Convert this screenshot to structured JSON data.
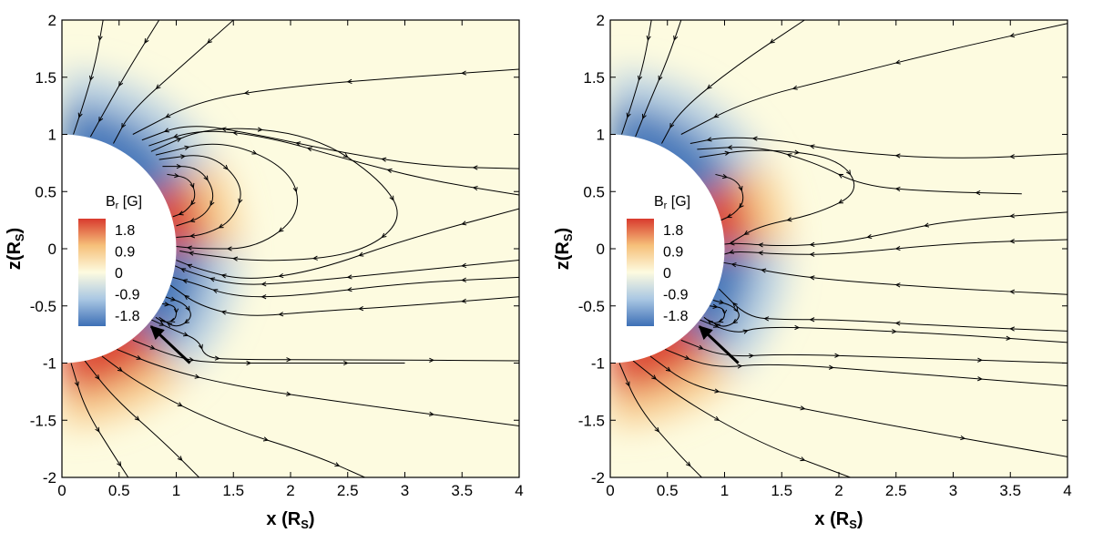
{
  "chart_data": [
    {
      "type": "contour-streamline",
      "panel": "left",
      "xlabel": "x (R",
      "xlabel_sub": "S",
      "xlabel_end": ")",
      "ylabel": "z(R",
      "ylabel_sub": "S",
      "ylabel_end": ")",
      "xlim": [
        0,
        4
      ],
      "ylim": [
        -2,
        2
      ],
      "xticks": [
        "0",
        "0.5",
        "1",
        "1.5",
        "2",
        "2.5",
        "3",
        "3.5",
        "4"
      ],
      "yticks": [
        "2",
        "1.5",
        "1",
        "0.5",
        "0",
        "-0.5",
        "-1",
        "-1.5",
        "-2"
      ],
      "legend_title": "B",
      "legend_title_sub": "r",
      "legend_title_end": " [G]",
      "legend_values": [
        "1.8",
        "0.9",
        "0",
        "-0.9",
        "-1.8"
      ],
      "colormap": [
        "#3d6fb6",
        "#a9c7e3",
        "#fdfbe0",
        "#f6c07a",
        "#d83a2e"
      ],
      "sun_radius": 1,
      "arrow": {
        "from": [
          1.12,
          -1.0
        ],
        "to": [
          0.78,
          -0.68
        ]
      },
      "field_polarity": [
        {
          "lat_range_deg": [
            30,
            90
          ],
          "sign": "negative"
        },
        {
          "lat_range_deg": [
            0,
            30
          ],
          "sign": "positive"
        },
        {
          "lat_range_deg": [
            -45,
            0
          ],
          "sign": "negative"
        },
        {
          "lat_range_deg": [
            -90,
            -45
          ],
          "sign": "positive"
        }
      ],
      "streamlines": [
        [
          [
            0.36,
            2.0
          ],
          [
            0.3,
            1.65
          ],
          [
            0.2,
            1.3
          ],
          [
            0.1,
            1.0
          ]
        ],
        [
          [
            0.85,
            2.0
          ],
          [
            0.6,
            1.6
          ],
          [
            0.4,
            1.25
          ],
          [
            0.25,
            0.98
          ]
        ],
        [
          [
            1.5,
            2.0
          ],
          [
            1.05,
            1.6
          ],
          [
            0.6,
            1.2
          ],
          [
            0.45,
            0.92
          ]
        ],
        [
          [
            4.0,
            1.57
          ],
          [
            3.0,
            1.5
          ],
          [
            2.0,
            1.42
          ],
          [
            1.2,
            1.3
          ],
          [
            0.62,
            1.0
          ]
        ],
        [
          [
            4.0,
            0.7
          ],
          [
            3.2,
            0.72
          ],
          [
            2.4,
            0.85
          ],
          [
            1.7,
            1.0
          ],
          [
            1.1,
            1.1
          ],
          [
            0.7,
            0.95
          ]
        ],
        [
          [
            4.0,
            0.47
          ],
          [
            3.2,
            0.6
          ],
          [
            2.5,
            0.78
          ],
          [
            1.8,
            0.98
          ],
          [
            1.2,
            1.05
          ],
          [
            0.76,
            0.9
          ]
        ],
        [
          [
            0.78,
            0.85
          ],
          [
            1.3,
            1.08
          ],
          [
            2.2,
            1.0
          ],
          [
            2.8,
            0.6
          ],
          [
            3.0,
            0.25
          ],
          [
            2.6,
            -0.05
          ],
          [
            1.8,
            -0.12
          ],
          [
            1.2,
            -0.05
          ],
          [
            1.03,
            -0.02
          ]
        ],
        [
          [
            0.82,
            0.82
          ],
          [
            1.4,
            0.96
          ],
          [
            2.0,
            0.7
          ],
          [
            2.1,
            0.3
          ],
          [
            1.7,
            0.0
          ],
          [
            1.2,
            0.0
          ],
          [
            1.0,
            0.02
          ]
        ],
        [
          [
            0.85,
            0.78
          ],
          [
            1.3,
            0.84
          ],
          [
            1.6,
            0.55
          ],
          [
            1.5,
            0.25
          ],
          [
            1.25,
            0.12
          ],
          [
            1.0,
            0.1
          ]
        ],
        [
          [
            0.88,
            0.72
          ],
          [
            1.2,
            0.72
          ],
          [
            1.35,
            0.48
          ],
          [
            1.25,
            0.28
          ],
          [
            1.0,
            0.2
          ]
        ],
        [
          [
            0.92,
            0.65
          ],
          [
            1.12,
            0.62
          ],
          [
            1.18,
            0.45
          ],
          [
            1.08,
            0.32
          ],
          [
            0.97,
            0.28
          ]
        ],
        [
          [
            4.0,
            0.35
          ],
          [
            3.0,
            0.08
          ],
          [
            2.2,
            -0.2
          ],
          [
            1.6,
            -0.28
          ],
          [
            1.2,
            -0.18
          ],
          [
            1.0,
            -0.1
          ]
        ],
        [
          [
            4.0,
            -0.1
          ],
          [
            3.0,
            -0.2
          ],
          [
            2.0,
            -0.3
          ],
          [
            1.5,
            -0.32
          ],
          [
            1.1,
            -0.2
          ],
          [
            0.99,
            -0.15
          ]
        ],
        [
          [
            4.0,
            -0.25
          ],
          [
            3.0,
            -0.3
          ],
          [
            2.0,
            -0.42
          ],
          [
            1.5,
            -0.42
          ],
          [
            1.15,
            -0.3
          ],
          [
            0.97,
            -0.25
          ]
        ],
        [
          [
            4.0,
            -0.42
          ],
          [
            3.0,
            -0.5
          ],
          [
            2.2,
            -0.55
          ],
          [
            1.6,
            -0.6
          ],
          [
            1.2,
            -0.5
          ],
          [
            0.95,
            -0.32
          ]
        ],
        [
          [
            0.9,
            -0.42
          ],
          [
            1.08,
            -0.48
          ],
          [
            1.15,
            -0.6
          ],
          [
            1.0,
            -0.7
          ],
          [
            0.85,
            -0.6
          ]
        ],
        [
          [
            0.87,
            -0.48
          ],
          [
            1.0,
            -0.5
          ],
          [
            1.0,
            -0.62
          ],
          [
            0.9,
            -0.65
          ],
          [
            0.82,
            -0.6
          ]
        ],
        [
          [
            0.78,
            -0.62
          ],
          [
            1.0,
            -0.72
          ],
          [
            1.2,
            -0.8
          ],
          [
            1.25,
            -0.95
          ],
          [
            1.5,
            -0.97
          ],
          [
            2.5,
            -0.97
          ],
          [
            4.0,
            -0.98
          ]
        ],
        [
          [
            0.62,
            -0.8
          ],
          [
            1.0,
            -0.95
          ],
          [
            1.3,
            -1.0
          ],
          [
            2.0,
            -1.0
          ],
          [
            3.0,
            -1.0
          ]
        ],
        [
          [
            0.48,
            -0.88
          ],
          [
            0.9,
            -1.05
          ],
          [
            1.5,
            -1.2
          ],
          [
            2.5,
            -1.35
          ],
          [
            4.0,
            -1.55
          ]
        ],
        [
          [
            0.35,
            -0.94
          ],
          [
            0.7,
            -1.2
          ],
          [
            1.4,
            -1.55
          ],
          [
            2.2,
            -1.8
          ],
          [
            2.65,
            -2.0
          ]
        ],
        [
          [
            0.2,
            -0.98
          ],
          [
            0.45,
            -1.3
          ],
          [
            0.9,
            -1.7
          ],
          [
            1.2,
            -2.0
          ]
        ],
        [
          [
            0.08,
            -1.0
          ],
          [
            0.2,
            -1.4
          ],
          [
            0.45,
            -1.8
          ],
          [
            0.58,
            -2.0
          ]
        ]
      ]
    },
    {
      "type": "contour-streamline",
      "panel": "right",
      "xlabel": "x (R",
      "xlabel_sub": "S",
      "xlabel_end": ")",
      "ylabel": "z(R",
      "ylabel_sub": "S",
      "ylabel_end": ")",
      "xlim": [
        0,
        4
      ],
      "ylim": [
        -2,
        2
      ],
      "xticks": [
        "0",
        "0.5",
        "1",
        "1.5",
        "2",
        "2.5",
        "3",
        "3.5",
        "4"
      ],
      "yticks": [
        "2",
        "1.5",
        "1",
        "0.5",
        "0",
        "-0.5",
        "-1",
        "-1.5",
        "-2"
      ],
      "legend_title": "B",
      "legend_title_sub": "r",
      "legend_title_end": " [G]",
      "legend_values": [
        "1.8",
        "0.9",
        "0",
        "-0.9",
        "-1.8"
      ],
      "colormap": [
        "#3d6fb6",
        "#a9c7e3",
        "#fdfbe0",
        "#f6c07a",
        "#d83a2e"
      ],
      "sun_radius": 1,
      "arrow": {
        "from": [
          1.12,
          -1.0
        ],
        "to": [
          0.78,
          -0.68
        ]
      },
      "field_polarity": [
        {
          "lat_range_deg": [
            30,
            90
          ],
          "sign": "negative"
        },
        {
          "lat_range_deg": [
            0,
            30
          ],
          "sign": "positive"
        },
        {
          "lat_range_deg": [
            -45,
            0
          ],
          "sign": "negative"
        },
        {
          "lat_range_deg": [
            -90,
            -45
          ],
          "sign": "positive"
        }
      ],
      "streamlines": [
        [
          [
            0.36,
            2.0
          ],
          [
            0.3,
            1.65
          ],
          [
            0.2,
            1.3
          ],
          [
            0.1,
            1.0
          ]
        ],
        [
          [
            0.62,
            2.0
          ],
          [
            0.5,
            1.65
          ],
          [
            0.35,
            1.3
          ],
          [
            0.22,
            0.98
          ]
        ],
        [
          [
            1.7,
            2.0
          ],
          [
            1.1,
            1.6
          ],
          [
            0.6,
            1.2
          ],
          [
            0.45,
            0.92
          ]
        ],
        [
          [
            4.0,
            1.97
          ],
          [
            3.0,
            1.75
          ],
          [
            2.0,
            1.5
          ],
          [
            1.2,
            1.3
          ],
          [
            0.62,
            1.0
          ]
        ],
        [
          [
            4.0,
            0.83
          ],
          [
            3.0,
            0.78
          ],
          [
            2.0,
            0.85
          ],
          [
            1.5,
            0.95
          ],
          [
            1.0,
            0.98
          ],
          [
            0.7,
            0.92
          ]
        ],
        [
          [
            3.6,
            0.48
          ],
          [
            2.8,
            0.5
          ],
          [
            2.2,
            0.55
          ],
          [
            1.8,
            0.75
          ],
          [
            1.3,
            0.9
          ],
          [
            0.76,
            0.87
          ]
        ],
        [
          [
            0.78,
            0.8
          ],
          [
            1.3,
            0.88
          ],
          [
            2.0,
            0.8
          ],
          [
            2.2,
            0.5
          ],
          [
            1.8,
            0.3
          ],
          [
            1.3,
            0.2
          ],
          [
            1.05,
            0.05
          ]
        ],
        [
          [
            4.0,
            0.32
          ],
          [
            3.0,
            0.25
          ],
          [
            2.5,
            0.15
          ],
          [
            2.0,
            0.05
          ],
          [
            1.5,
            0.02
          ],
          [
            1.1,
            0.05
          ],
          [
            1.0,
            0.04
          ]
        ],
        [
          [
            4.0,
            0.08
          ],
          [
            3.0,
            0.05
          ],
          [
            2.0,
            -0.05
          ],
          [
            1.5,
            -0.05
          ],
          [
            1.1,
            -0.02
          ],
          [
            0.99,
            -0.05
          ]
        ],
        [
          [
            4.0,
            -0.4
          ],
          [
            3.0,
            -0.35
          ],
          [
            2.0,
            -0.28
          ],
          [
            1.5,
            -0.22
          ],
          [
            1.15,
            -0.15
          ],
          [
            0.98,
            -0.12
          ]
        ],
        [
          [
            0.92,
            0.65
          ],
          [
            1.12,
            0.6
          ],
          [
            1.18,
            0.42
          ],
          [
            1.08,
            0.3
          ],
          [
            0.97,
            0.25
          ]
        ],
        [
          [
            0.9,
            -0.45
          ],
          [
            1.08,
            -0.5
          ],
          [
            1.15,
            -0.6
          ],
          [
            1.0,
            -0.7
          ],
          [
            0.85,
            -0.62
          ]
        ],
        [
          [
            0.87,
            -0.5
          ],
          [
            1.0,
            -0.52
          ],
          [
            1.0,
            -0.62
          ],
          [
            0.9,
            -0.66
          ],
          [
            0.82,
            -0.6
          ]
        ],
        [
          [
            4.0,
            -0.72
          ],
          [
            3.0,
            -0.68
          ],
          [
            2.0,
            -0.62
          ],
          [
            1.5,
            -0.62
          ],
          [
            1.2,
            -0.6
          ],
          [
            0.95,
            -0.35
          ]
        ],
        [
          [
            0.78,
            -0.62
          ],
          [
            1.1,
            -0.75
          ],
          [
            1.3,
            -0.68
          ],
          [
            2.0,
            -0.7
          ],
          [
            3.0,
            -0.75
          ],
          [
            4.0,
            -0.82
          ]
        ],
        [
          [
            0.62,
            -0.8
          ],
          [
            1.0,
            -0.95
          ],
          [
            1.5,
            -0.92
          ],
          [
            2.5,
            -0.95
          ],
          [
            4.0,
            -1.0
          ]
        ],
        [
          [
            0.48,
            -0.88
          ],
          [
            0.9,
            -1.05
          ],
          [
            1.4,
            -1.0
          ],
          [
            2.5,
            -1.08
          ],
          [
            4.0,
            -1.2
          ]
        ],
        [
          [
            0.35,
            -0.94
          ],
          [
            0.7,
            -1.2
          ],
          [
            1.2,
            -1.3
          ],
          [
            2.2,
            -1.5
          ],
          [
            4.0,
            -1.82
          ]
        ],
        [
          [
            0.2,
            -0.98
          ],
          [
            0.6,
            -1.3
          ],
          [
            1.3,
            -1.7
          ],
          [
            2.1,
            -2.0
          ]
        ],
        [
          [
            0.08,
            -1.0
          ],
          [
            0.25,
            -1.4
          ],
          [
            0.6,
            -1.8
          ],
          [
            0.8,
            -2.0
          ]
        ]
      ]
    }
  ]
}
